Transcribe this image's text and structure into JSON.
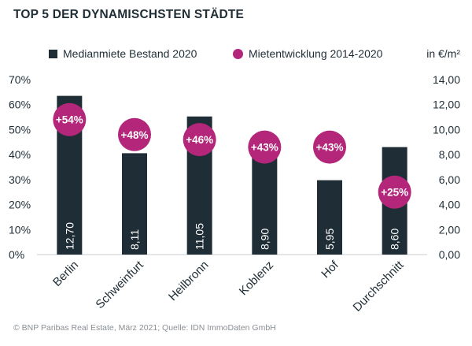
{
  "title": "TOP 5 DER DYNAMISCHSTEN STÄDTE",
  "legend": {
    "bar_label": "Medianmiete Bestand 2020",
    "dot_label": "Mietentwicklung 2014-2020"
  },
  "unit_label": "in €/m²",
  "footer": "© BNP Paribas Real Estate, März 2021; Quelle: IDN ImmoDaten GmbH",
  "colors": {
    "bar": "#1f2d36",
    "dot": "#b3267a",
    "axis": "#1f2d36",
    "grid": "#e6e6e6"
  },
  "chart_data": {
    "type": "bar",
    "categories": [
      "Berlin",
      "Schweinfurt",
      "Heilbronn",
      "Koblenz",
      "Hof",
      "Durchschnitt"
    ],
    "series": [
      {
        "name": "Medianmiete Bestand 2020",
        "axis": "right",
        "type": "bar",
        "values": [
          12.7,
          8.11,
          11.05,
          8.9,
          5.95,
          8.6
        ],
        "labels": [
          "12,70",
          "8,11",
          "11,05",
          "8,90",
          "5,95",
          "8,60"
        ]
      },
      {
        "name": "Mietentwicklung 2014-2020",
        "axis": "left",
        "type": "scatter",
        "values": [
          54,
          48,
          46,
          43,
          43,
          25
        ],
        "labels": [
          "+54%",
          "+48%",
          "+46%",
          "+43%",
          "+43%",
          "+25%"
        ]
      }
    ],
    "left_axis": {
      "min": 0,
      "max": 70,
      "ticks": [
        "0%",
        "10%",
        "20%",
        "30%",
        "40%",
        "50%",
        "60%",
        "70%"
      ]
    },
    "right_axis": {
      "min": 0,
      "max": 14,
      "ticks": [
        "0,00",
        "2,00",
        "4,00",
        "6,00",
        "8,00",
        "10,00",
        "12,00",
        "14,00"
      ]
    }
  }
}
